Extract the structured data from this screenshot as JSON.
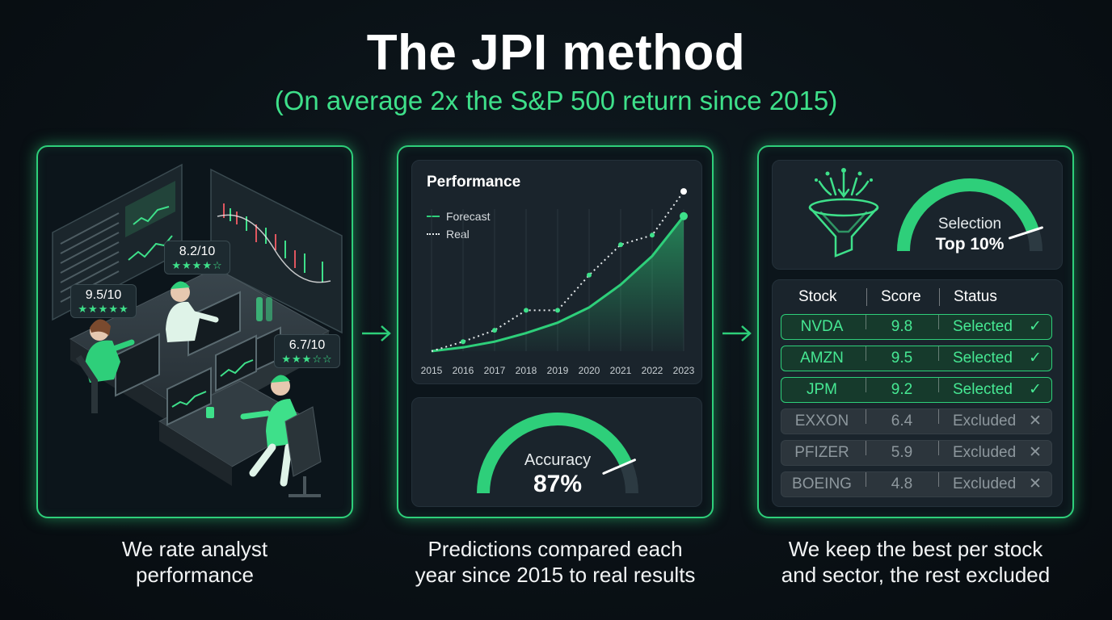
{
  "title": "The JPI method",
  "subtitle": "(On average 2x the S&P 500 return since 2015)",
  "colors": {
    "accent": "#2ecf7a",
    "accent_text": "#3ee08a",
    "background": "#0a1116",
    "card": "#1a242c"
  },
  "panel1": {
    "caption_line1": "We rate analyst",
    "caption_line2": "performance",
    "badges": [
      {
        "score": "9.5/10",
        "stars": "★★★★★"
      },
      {
        "score": "8.2/10",
        "stars": "★★★★☆"
      },
      {
        "score": "6.7/10",
        "stars": "★★★☆☆"
      }
    ]
  },
  "panel2": {
    "caption_line1": "Predictions compared each",
    "caption_line2": "year since 2015 to real results",
    "chart_title": "Performance",
    "legend": {
      "forecast": "Forecast",
      "real": "Real"
    },
    "accuracy_label": "Accuracy",
    "accuracy_value": "87%",
    "accuracy_fraction": 0.87
  },
  "chart_data": {
    "type": "line",
    "title": "Performance",
    "x": [
      "2015",
      "2016",
      "2017",
      "2018",
      "2019",
      "2020",
      "2021",
      "2022",
      "2023"
    ],
    "series": [
      {
        "name": "Forecast",
        "style": "solid",
        "values": [
          0,
          4,
          10,
          19,
          30,
          46,
          70,
          100,
          142
        ]
      },
      {
        "name": "Real",
        "style": "dotted",
        "values": [
          0,
          10,
          22,
          43,
          43,
          80,
          112,
          122,
          168
        ]
      }
    ],
    "ylim": [
      0,
      180
    ],
    "grid": true
  },
  "panel3": {
    "caption_line1": "We keep the best per stock",
    "caption_line2": "and sector, the rest excluded",
    "selection_label": "Selection",
    "selection_value": "Top 10%",
    "selection_fraction": 0.9,
    "table": {
      "headers": [
        "Stock",
        "Score",
        "Status"
      ],
      "rows": [
        {
          "stock": "NVDA",
          "score": "9.8",
          "status": "Selected",
          "mark": "✓",
          "state": "selected"
        },
        {
          "stock": "AMZN",
          "score": "9.5",
          "status": "Selected",
          "mark": "✓",
          "state": "selected"
        },
        {
          "stock": "JPM",
          "score": "9.2",
          "status": "Selected",
          "mark": "✓",
          "state": "selected"
        },
        {
          "stock": "EXXON",
          "score": "6.4",
          "status": "Excluded",
          "mark": "✕",
          "state": "excluded"
        },
        {
          "stock": "PFIZER",
          "score": "5.9",
          "status": "Excluded",
          "mark": "✕",
          "state": "excluded"
        },
        {
          "stock": "BOEING",
          "score": "4.8",
          "status": "Excluded",
          "mark": "✕",
          "state": "excluded"
        }
      ]
    }
  }
}
